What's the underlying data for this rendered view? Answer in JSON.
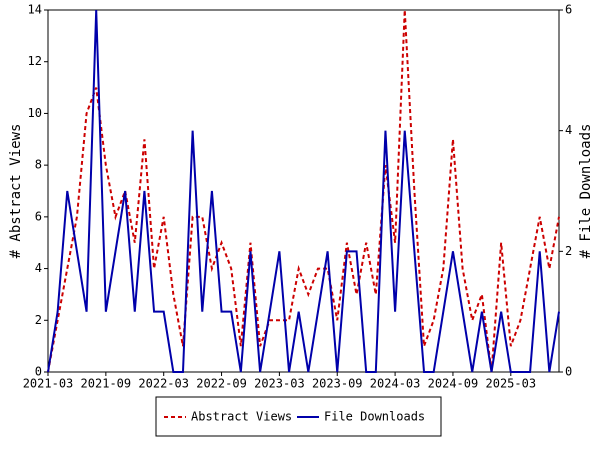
{
  "chart_data": {
    "type": "line",
    "categories": [
      "2021-03",
      null,
      null,
      null,
      null,
      null,
      "2021-09",
      null,
      null,
      null,
      null,
      null,
      "2022-03",
      null,
      null,
      null,
      null,
      null,
      "2022-09",
      null,
      null,
      null,
      null,
      null,
      "2023-03",
      null,
      null,
      null,
      null,
      null,
      "2023-09",
      null,
      null,
      null,
      null,
      null,
      "2024-03",
      null,
      null,
      null,
      null,
      null,
      "2024-09",
      null,
      null,
      null,
      null,
      null,
      "2025-03",
      null,
      null,
      null,
      null,
      null
    ],
    "ylabel": "# Abstract Views",
    "y2label": "# File Downloads",
    "ylim": [
      0,
      14
    ],
    "yticks": [
      0,
      2,
      4,
      6,
      8,
      10,
      12,
      14
    ],
    "y2lim": [
      0,
      6
    ],
    "y2ticks": [
      0,
      2,
      4,
      6
    ],
    "legend": "bottom",
    "series": [
      {
        "name": "Abstract Views",
        "color": "#cc0000",
        "dash": true,
        "values": [
          0,
          2,
          4,
          6,
          10,
          11,
          8,
          6,
          7,
          5,
          9,
          4,
          6,
          3,
          1,
          6,
          6,
          4,
          5,
          4,
          1,
          5,
          1,
          2,
          2,
          2,
          4,
          3,
          4,
          4,
          2,
          5,
          3,
          5,
          3,
          8,
          5,
          14,
          7,
          1,
          2,
          4,
          9,
          4,
          2,
          3,
          0,
          5,
          1,
          2,
          4,
          6,
          4,
          6
        ]
      },
      {
        "name": "File Downloads",
        "color": "#0000aa",
        "axis": "y2",
        "values": [
          0,
          1,
          3,
          2,
          1,
          6,
          1,
          2,
          3,
          1,
          3,
          1,
          1,
          0,
          0,
          4,
          1,
          3,
          1,
          1,
          0,
          2,
          0,
          1,
          2,
          0,
          1,
          0,
          1,
          2,
          0,
          2,
          2,
          0,
          0,
          4,
          1,
          4,
          2,
          0,
          0,
          1,
          2,
          1,
          0,
          1,
          0,
          1,
          0,
          0,
          0,
          2,
          0,
          1
        ]
      }
    ]
  }
}
